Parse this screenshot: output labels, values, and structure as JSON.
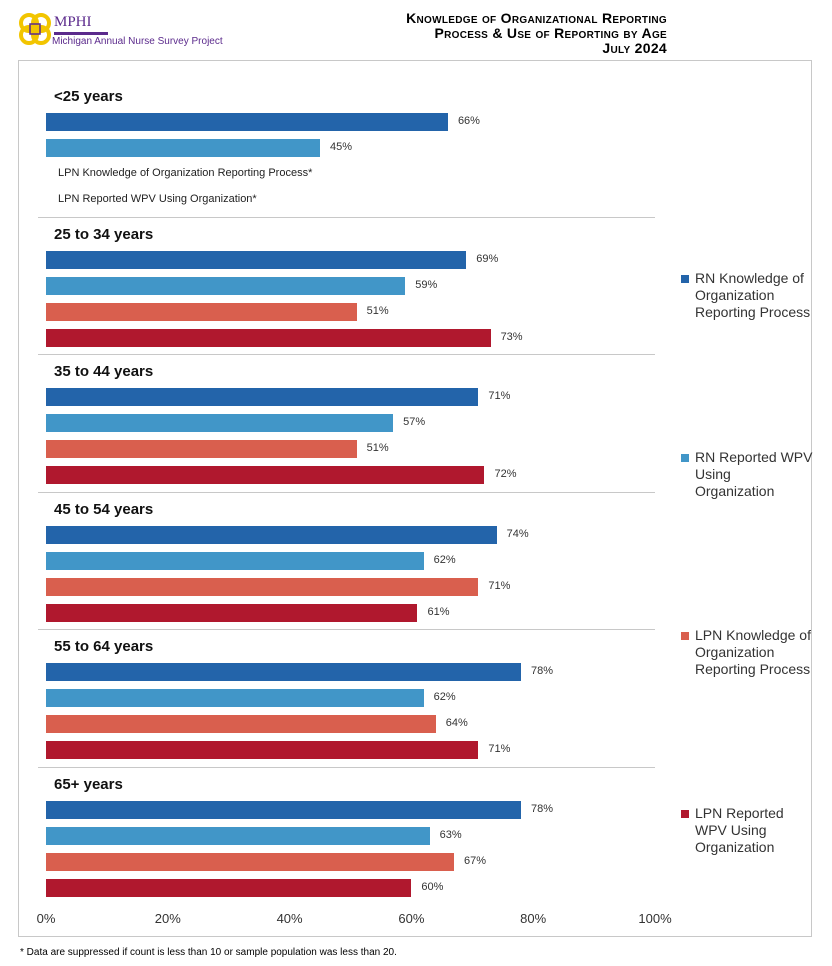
{
  "header": {
    "logo_text": "MPHI",
    "logo_subtitle": "Michigan Annual Nurse Survey Project",
    "title_lines": [
      "Knowledge of Organizational Reporting",
      "Process & Use of Reporting by Age",
      "July 2024"
    ]
  },
  "chart_data": {
    "type": "bar",
    "orientation": "horizontal",
    "title": "Knowledge of Organizational Reporting Process & Use of Reporting by Age July 2024",
    "xlim": [
      0,
      100
    ],
    "x_ticks": [
      "0%",
      "20%",
      "40%",
      "60%",
      "80%",
      "100%"
    ],
    "legend_position": "right",
    "categories": [
      "<25 years",
      "25 to 34 years",
      "35 to 44 years",
      "45 to 54 years",
      "55 to 64 years",
      "65+ years"
    ],
    "series": [
      {
        "name": "RN Knowledge of Organization Reporting Process",
        "color": "#2364aa",
        "values": [
          66,
          69,
          71,
          74,
          78,
          78
        ]
      },
      {
        "name": "RN Reported WPV Using Organization",
        "color": "#4196c8",
        "values": [
          45,
          59,
          57,
          62,
          62,
          63
        ]
      },
      {
        "name": "LPN Knowledge of Organization Reporting Process",
        "color": "#d95f4e",
        "values": [
          null,
          51,
          51,
          71,
          64,
          67
        ]
      },
      {
        "name": "LPN Reported WPV Using Organization",
        "color": "#b0182e",
        "values": [
          null,
          73,
          72,
          61,
          71,
          60
        ]
      }
    ],
    "suppressed_labels": [
      "LPN  Knowledge of Organization Reporting Process*",
      "LPN  Reported WPV Using Organization*"
    ]
  },
  "footnote": "* Data are suppressed if count is less than 10 or sample population was less than 20."
}
